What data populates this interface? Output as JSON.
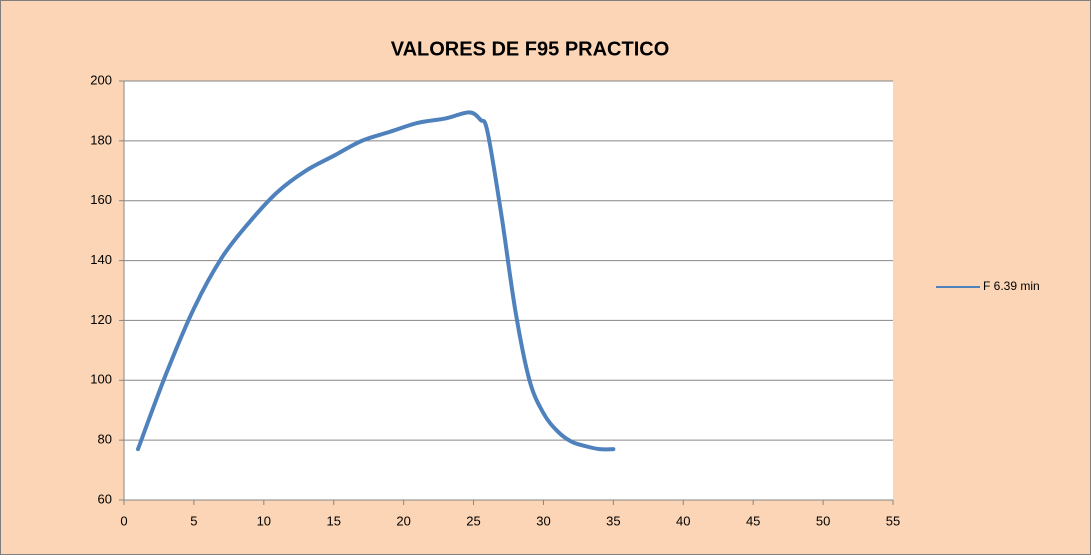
{
  "chart_data": {
    "type": "line",
    "title": "VALORES DE F95 PRACTICO",
    "x": [
      1,
      3,
      5,
      7,
      9,
      11,
      13,
      15,
      17,
      19,
      21,
      23,
      24.7,
      25.5,
      26,
      27,
      28,
      29,
      30,
      31,
      32,
      33,
      34,
      35
    ],
    "series": [
      {
        "name": "F 6.39 min",
        "color": "#4f81bd",
        "values": [
          77,
          102,
          124,
          141,
          153,
          163,
          170,
          175,
          180,
          183,
          186,
          187.5,
          189.5,
          187,
          183,
          155,
          123,
          100,
          89,
          83,
          79.5,
          78,
          77,
          77
        ]
      }
    ],
    "xlim": [
      0,
      55
    ],
    "xticks": [
      0,
      5,
      10,
      15,
      20,
      25,
      30,
      35,
      40,
      45,
      50,
      55
    ],
    "ylim": [
      60,
      200
    ],
    "yticks": [
      60,
      80,
      100,
      120,
      140,
      160,
      180,
      200
    ],
    "grid": true,
    "legend": "right"
  }
}
